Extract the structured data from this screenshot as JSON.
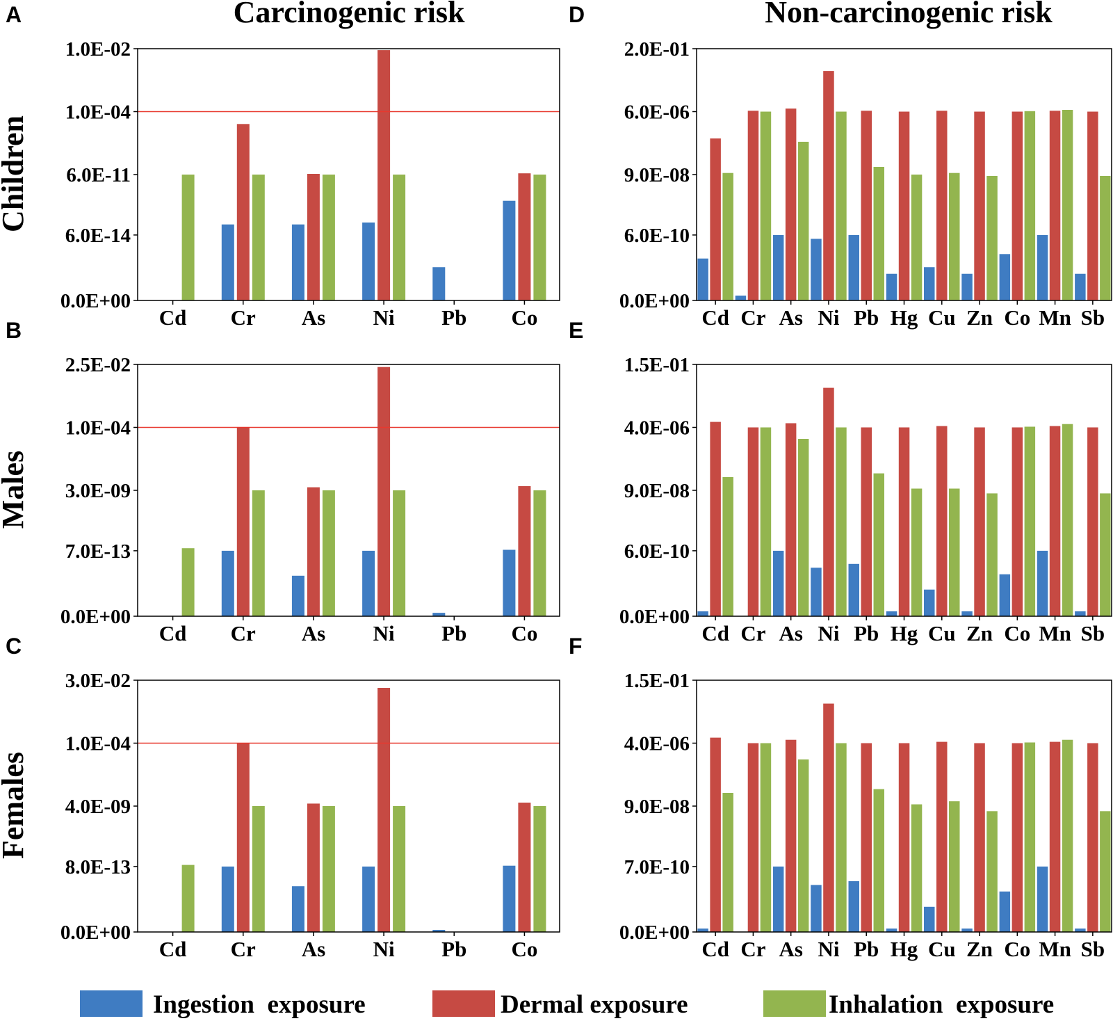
{
  "titles": {
    "left": "Carcinogenic risk",
    "right": "Non-carcinogenic risk"
  },
  "row_labels": [
    "Children",
    "Males",
    "Females"
  ],
  "colors": {
    "ingestion": "#3f7cc2",
    "dermal": "#c64a43",
    "inhalation": "#93b54f",
    "threshold": "#e8382e"
  },
  "legend": [
    {
      "key": "ingestion",
      "label": "Ingestion  exposure"
    },
    {
      "key": "dermal",
      "label": "Dermal exposure"
    },
    {
      "key": "inhalation",
      "label": "Inhalation  exposure"
    }
  ],
  "chart_data": [
    {
      "type": "bar",
      "panel": "A",
      "y_scale": "custom",
      "categories": [
        "Cd",
        "Cr",
        "As",
        "Ni",
        "Pb",
        "Co"
      ],
      "yticks": [
        "0.0E+00",
        "6.0E-14",
        "6.0E-11",
        "1.0E-04",
        "1.0E-02"
      ],
      "threshold": "1.0E-04",
      "series": [
        {
          "name": "Ingestion  exposure",
          "values": [
            null,
            "2E-13",
            "2E-13",
            "2.5E-13",
            "2E-15",
            "3E-12"
          ]
        },
        {
          "name": "Dermal exposure",
          "values": [
            null,
            "6E-06",
            "7E-11",
            null,
            null,
            "8E-11"
          ]
        },
        {
          "name": "Inhalation  exposure",
          "values": [
            "6E-11",
            "6E-11",
            "6E-11",
            "6E-11",
            null,
            "6E-11"
          ]
        }
      ],
      "dermal_ni": "9E-03"
    },
    {
      "type": "bar",
      "panel": "B",
      "y_scale": "custom",
      "categories": [
        "Cd",
        "Cr",
        "As",
        "Ni",
        "Pb",
        "Co"
      ],
      "yticks": [
        "0.0E+00",
        "7.0E-13",
        "3.0E-09",
        "1.0E-04",
        "2.5E-02"
      ],
      "threshold": "1.0E-04",
      "series": [
        {
          "name": "Ingestion  exposure",
          "values": [
            null,
            "7E-13",
            "5E-14",
            "7E-13",
            "1E-15",
            "8E-13"
          ]
        },
        {
          "name": "Dermal exposure",
          "values": [
            null,
            "1E-04",
            "5E-09",
            "2E-02",
            null,
            "6E-09"
          ]
        },
        {
          "name": "Inhalation  exposure",
          "values": [
            "1E-12",
            "3E-09",
            "3E-09",
            "3E-09",
            null,
            "3E-09"
          ]
        }
      ]
    },
    {
      "type": "bar",
      "panel": "C",
      "y_scale": "custom",
      "categories": [
        "Cd",
        "Cr",
        "As",
        "Ni",
        "Pb",
        "Co"
      ],
      "yticks": [
        "0.0E+00",
        "8.0E-13",
        "4.0E-09",
        "1.0E-04",
        "3.0E-02"
      ],
      "threshold": "1.0E-04",
      "series": [
        {
          "name": "Ingestion  exposure",
          "values": [
            null,
            "8E-13",
            "1E-13",
            "8E-13",
            "1E-15",
            "9E-13"
          ]
        },
        {
          "name": "Dermal exposure",
          "values": [
            null,
            "1E-04",
            "6E-09",
            "1.5E-02",
            null,
            "7E-09"
          ]
        },
        {
          "name": "Inhalation  exposure",
          "values": [
            "1E-12",
            "4E-09",
            "4E-09",
            "4E-09",
            null,
            "4E-09"
          ]
        }
      ]
    },
    {
      "type": "bar",
      "panel": "D",
      "y_scale": "custom",
      "categories": [
        "Cd",
        "Cr",
        "As",
        "Ni",
        "Pb",
        "Hg",
        "Cu",
        "Zn",
        "Co",
        "Mn",
        "Sb"
      ],
      "yticks": [
        "0.0E+00",
        "6.0E-10",
        "9.0E-08",
        "6.0E-06",
        "2.0E-01"
      ],
      "series": [
        {
          "name": "Ingestion  exposure",
          "values": [
            "5E-11",
            "1E-12",
            "6E-10",
            "4E-10",
            "6E-10",
            "1E-11",
            "2E-11",
            "1E-11",
            "8E-11",
            "6E-10",
            "1E-11"
          ]
        },
        {
          "name": "Dermal exposure",
          "values": [
            "1E-06",
            "7E-06",
            "1E-05",
            "5E-03",
            "7E-06",
            "6E-06",
            "7E-06",
            "6E-06",
            "6E-06",
            "7E-06",
            "6E-06"
          ]
        },
        {
          "name": "Inhalation  exposure",
          "values": [
            "1E-07",
            "6E-06",
            "8E-07",
            "6E-06",
            "1.5E-07",
            "9E-08",
            "1E-07",
            "8E-08",
            "6.5E-06",
            "8E-06",
            "8E-08"
          ]
        }
      ]
    },
    {
      "type": "bar",
      "panel": "E",
      "y_scale": "custom",
      "categories": [
        "Cd",
        "Cr",
        "As",
        "Ni",
        "Pb",
        "Hg",
        "Cu",
        "Zn",
        "Co",
        "Mn",
        "Sb"
      ],
      "yticks": [
        "0.0E+00",
        "6.0E-10",
        "9.0E-08",
        "4.0E-06",
        "1.5E-01"
      ],
      "series": [
        {
          "name": "Ingestion  exposure",
          "values": [
            "1E-12",
            null,
            "6E-10",
            "1E-10",
            "1.5E-10",
            "1E-12",
            "1E-11",
            "1E-12",
            "5E-11",
            "6E-10",
            "1E-12"
          ]
        },
        {
          "name": "Dermal exposure",
          "values": [
            "1E-05",
            "4E-06",
            "8E-06",
            "3E-03",
            "4E-06",
            "4E-06",
            "5E-06",
            "4E-06",
            "4E-06",
            "5E-06",
            "4E-06"
          ]
        },
        {
          "name": "Inhalation  exposure",
          "values": [
            "2E-07",
            "4E-06",
            "2E-06",
            "4E-06",
            "2.5E-07",
            "1E-07",
            "1E-07",
            "7E-08",
            "4.5E-06",
            "7E-06",
            "7E-08"
          ]
        }
      ]
    },
    {
      "type": "bar",
      "panel": "F",
      "y_scale": "custom",
      "categories": [
        "Cd",
        "Cr",
        "As",
        "Ni",
        "Pb",
        "Hg",
        "Cu",
        "Zn",
        "Co",
        "Mn",
        "Sb"
      ],
      "yticks": [
        "0.0E+00",
        "7.0E-10",
        "9.0E-08",
        "4.0E-06",
        "1.5E-01"
      ],
      "series": [
        {
          "name": "Ingestion  exposure",
          "values": [
            "1E-12",
            null,
            "7E-10",
            "1E-10",
            "1.5E-10",
            "1E-12",
            "1E-11",
            "1E-12",
            "5E-11",
            "7E-10",
            "1E-12"
          ]
        },
        {
          "name": "Dermal exposure",
          "values": [
            "1E-05",
            "4E-06",
            "7E-06",
            "3E-03",
            "4E-06",
            "4E-06",
            "5E-06",
            "4E-06",
            "4E-06",
            "5E-06",
            "4E-06"
          ]
        },
        {
          "name": "Inhalation  exposure",
          "values": [
            "2E-07",
            "4E-06",
            "1.5E-06",
            "4E-06",
            "2.5E-07",
            "1E-07",
            "1.2E-07",
            "6E-08",
            "4.5E-06",
            "7E-06",
            "6E-08"
          ]
        }
      ]
    }
  ]
}
